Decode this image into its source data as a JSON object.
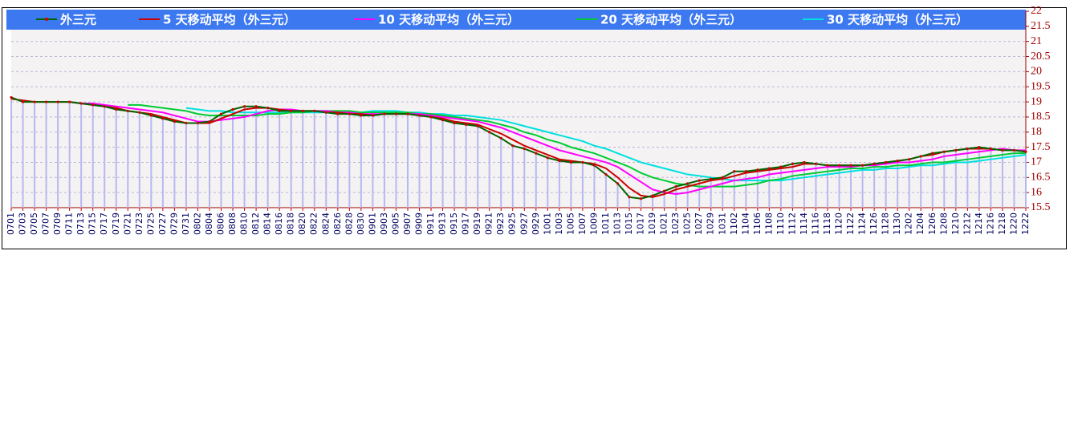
{
  "chart_data": {
    "type": "line",
    "categories": [
      "0701",
      "0703",
      "0705",
      "0707",
      "0709",
      "0711",
      "0713",
      "0715",
      "0717",
      "0719",
      "0721",
      "0723",
      "0725",
      "0727",
      "0729",
      "0731",
      "0802",
      "0804",
      "0806",
      "0808",
      "0810",
      "0812",
      "0814",
      "0816",
      "0818",
      "0820",
      "0822",
      "0824",
      "0826",
      "0828",
      "0830",
      "0901",
      "0903",
      "0905",
      "0907",
      "0909",
      "0911",
      "0913",
      "0915",
      "0917",
      "0919",
      "0921",
      "0923",
      "0925",
      "0927",
      "0929",
      "1001",
      "1003",
      "1005",
      "1007",
      "1009",
      "1011",
      "1013",
      "1015",
      "1017",
      "1019",
      "1021",
      "1023",
      "1025",
      "1027",
      "1029",
      "1031",
      "1102",
      "1104",
      "1106",
      "1108",
      "1110",
      "1112",
      "1114",
      "1116",
      "1118",
      "1120",
      "1122",
      "1124",
      "1126",
      "1128",
      "1130",
      "1202",
      "1204",
      "1206",
      "1208",
      "1210",
      "1212",
      "1214",
      "1216",
      "1218",
      "1220",
      "1222"
    ],
    "series": [
      {
        "name": "外三元",
        "color": "#006400",
        "values": [
          19.15,
          19.0,
          19.0,
          19.0,
          19.0,
          19.0,
          18.95,
          18.9,
          18.85,
          18.75,
          18.7,
          18.65,
          18.55,
          18.45,
          18.35,
          18.3,
          18.3,
          18.35,
          18.6,
          18.75,
          18.85,
          18.85,
          18.8,
          18.7,
          18.7,
          18.7,
          18.7,
          18.65,
          18.6,
          18.6,
          18.55,
          18.55,
          18.6,
          18.6,
          18.6,
          18.55,
          18.5,
          18.4,
          18.3,
          18.25,
          18.2,
          18.0,
          17.8,
          17.55,
          17.45,
          17.3,
          17.15,
          17.05,
          17.0,
          17.0,
          16.9,
          16.6,
          16.3,
          15.85,
          15.8,
          15.9,
          16.05,
          16.2,
          16.3,
          16.4,
          16.45,
          16.5,
          16.7,
          16.7,
          16.75,
          16.8,
          16.85,
          16.95,
          17.0,
          16.95,
          16.9,
          16.9,
          16.9,
          16.9,
          16.95,
          17.0,
          17.05,
          17.1,
          17.2,
          17.3,
          17.35,
          17.4,
          17.45,
          17.5,
          17.45,
          17.4,
          17.4,
          17.35
        ]
      },
      {
        "name": "5 天移动平均（外三元）",
        "color": "#cc0000",
        "values": [
          19.1,
          19.05,
          19.0,
          19.0,
          19.0,
          19.0,
          18.95,
          18.9,
          18.85,
          18.8,
          18.7,
          18.65,
          18.6,
          18.5,
          18.4,
          18.3,
          18.3,
          18.3,
          18.45,
          18.6,
          18.75,
          18.8,
          18.8,
          18.75,
          18.7,
          18.7,
          18.7,
          18.65,
          18.65,
          18.6,
          18.6,
          18.55,
          18.6,
          18.6,
          18.6,
          18.55,
          18.5,
          18.45,
          18.35,
          18.3,
          18.25,
          18.1,
          17.95,
          17.75,
          17.55,
          17.4,
          17.25,
          17.1,
          17.05,
          17.0,
          16.95,
          16.8,
          16.5,
          16.15,
          15.9,
          15.85,
          15.95,
          16.1,
          16.2,
          16.3,
          16.4,
          16.45,
          16.55,
          16.65,
          16.7,
          16.75,
          16.8,
          16.85,
          16.95,
          16.95,
          16.9,
          16.9,
          16.9,
          16.9,
          16.95,
          17.0,
          17.05,
          17.1,
          17.2,
          17.25,
          17.35,
          17.4,
          17.45,
          17.45,
          17.45,
          17.4,
          17.4,
          17.35
        ]
      },
      {
        "name": "10 天移动平均（外三元）",
        "color": "#ff00ff",
        "values": [
          null,
          null,
          null,
          null,
          null,
          19.0,
          18.95,
          18.95,
          18.9,
          18.85,
          18.8,
          18.75,
          18.7,
          18.65,
          18.55,
          18.45,
          18.35,
          18.35,
          18.4,
          18.45,
          18.5,
          18.6,
          18.7,
          18.75,
          18.75,
          18.7,
          18.7,
          18.7,
          18.65,
          18.65,
          18.6,
          18.6,
          18.6,
          18.6,
          18.6,
          18.6,
          18.55,
          18.5,
          18.45,
          18.4,
          18.35,
          18.25,
          18.15,
          18.0,
          17.85,
          17.7,
          17.55,
          17.4,
          17.3,
          17.2,
          17.1,
          17.0,
          16.85,
          16.6,
          16.35,
          16.1,
          16.0,
          15.95,
          16.0,
          16.1,
          16.2,
          16.3,
          16.4,
          16.45,
          16.5,
          16.6,
          16.65,
          16.7,
          16.75,
          16.8,
          16.85,
          16.85,
          16.85,
          16.9,
          16.9,
          16.95,
          17.0,
          17.0,
          17.05,
          17.1,
          17.2,
          17.25,
          17.3,
          17.35,
          17.4,
          17.45,
          17.4,
          17.4
        ]
      },
      {
        "name": "20 天移动平均（外三元）",
        "color": "#00cc33",
        "values": [
          null,
          null,
          null,
          null,
          null,
          null,
          null,
          null,
          null,
          null,
          18.9,
          18.9,
          18.85,
          18.8,
          18.75,
          18.7,
          18.6,
          18.55,
          18.55,
          18.55,
          18.55,
          18.55,
          18.6,
          18.6,
          18.65,
          18.65,
          18.7,
          18.7,
          18.7,
          18.7,
          18.65,
          18.65,
          18.65,
          18.65,
          18.65,
          18.6,
          18.6,
          18.55,
          18.5,
          18.45,
          18.4,
          18.35,
          18.25,
          18.15,
          18.0,
          17.9,
          17.75,
          17.65,
          17.5,
          17.4,
          17.3,
          17.15,
          17.0,
          16.85,
          16.65,
          16.5,
          16.4,
          16.3,
          16.25,
          16.2,
          16.2,
          16.2,
          16.2,
          16.25,
          16.3,
          16.4,
          16.45,
          16.55,
          16.6,
          16.65,
          16.7,
          16.75,
          16.8,
          16.8,
          16.85,
          16.85,
          16.9,
          16.9,
          16.95,
          17.0,
          17.0,
          17.05,
          17.1,
          17.15,
          17.2,
          17.25,
          17.3,
          17.3
        ]
      },
      {
        "name": "30 天移动平均（外三元）",
        "color": "#00e0e0",
        "values": [
          null,
          null,
          null,
          null,
          null,
          null,
          null,
          null,
          null,
          null,
          null,
          null,
          null,
          null,
          null,
          18.8,
          18.75,
          18.7,
          18.7,
          18.65,
          18.65,
          18.65,
          18.65,
          18.65,
          18.65,
          18.65,
          18.65,
          18.65,
          18.65,
          18.65,
          18.65,
          18.7,
          18.7,
          18.7,
          18.65,
          18.65,
          18.6,
          18.6,
          18.55,
          18.55,
          18.5,
          18.45,
          18.4,
          18.3,
          18.2,
          18.1,
          18.0,
          17.9,
          17.8,
          17.7,
          17.55,
          17.45,
          17.3,
          17.15,
          17.0,
          16.9,
          16.8,
          16.7,
          16.6,
          16.55,
          16.5,
          16.45,
          16.4,
          16.4,
          16.4,
          16.4,
          16.4,
          16.45,
          16.5,
          16.55,
          16.6,
          16.65,
          16.7,
          16.75,
          16.75,
          16.8,
          16.8,
          16.85,
          16.9,
          16.9,
          16.95,
          17.0,
          17.0,
          17.05,
          17.1,
          17.15,
          17.2,
          17.25
        ]
      }
    ],
    "ylim": [
      15.5,
      22
    ],
    "yticks": [
      15.5,
      16,
      16.5,
      17,
      17.5,
      18,
      18.5,
      19,
      19.5,
      20,
      20.5,
      21,
      21.5,
      22
    ],
    "grid": true
  }
}
